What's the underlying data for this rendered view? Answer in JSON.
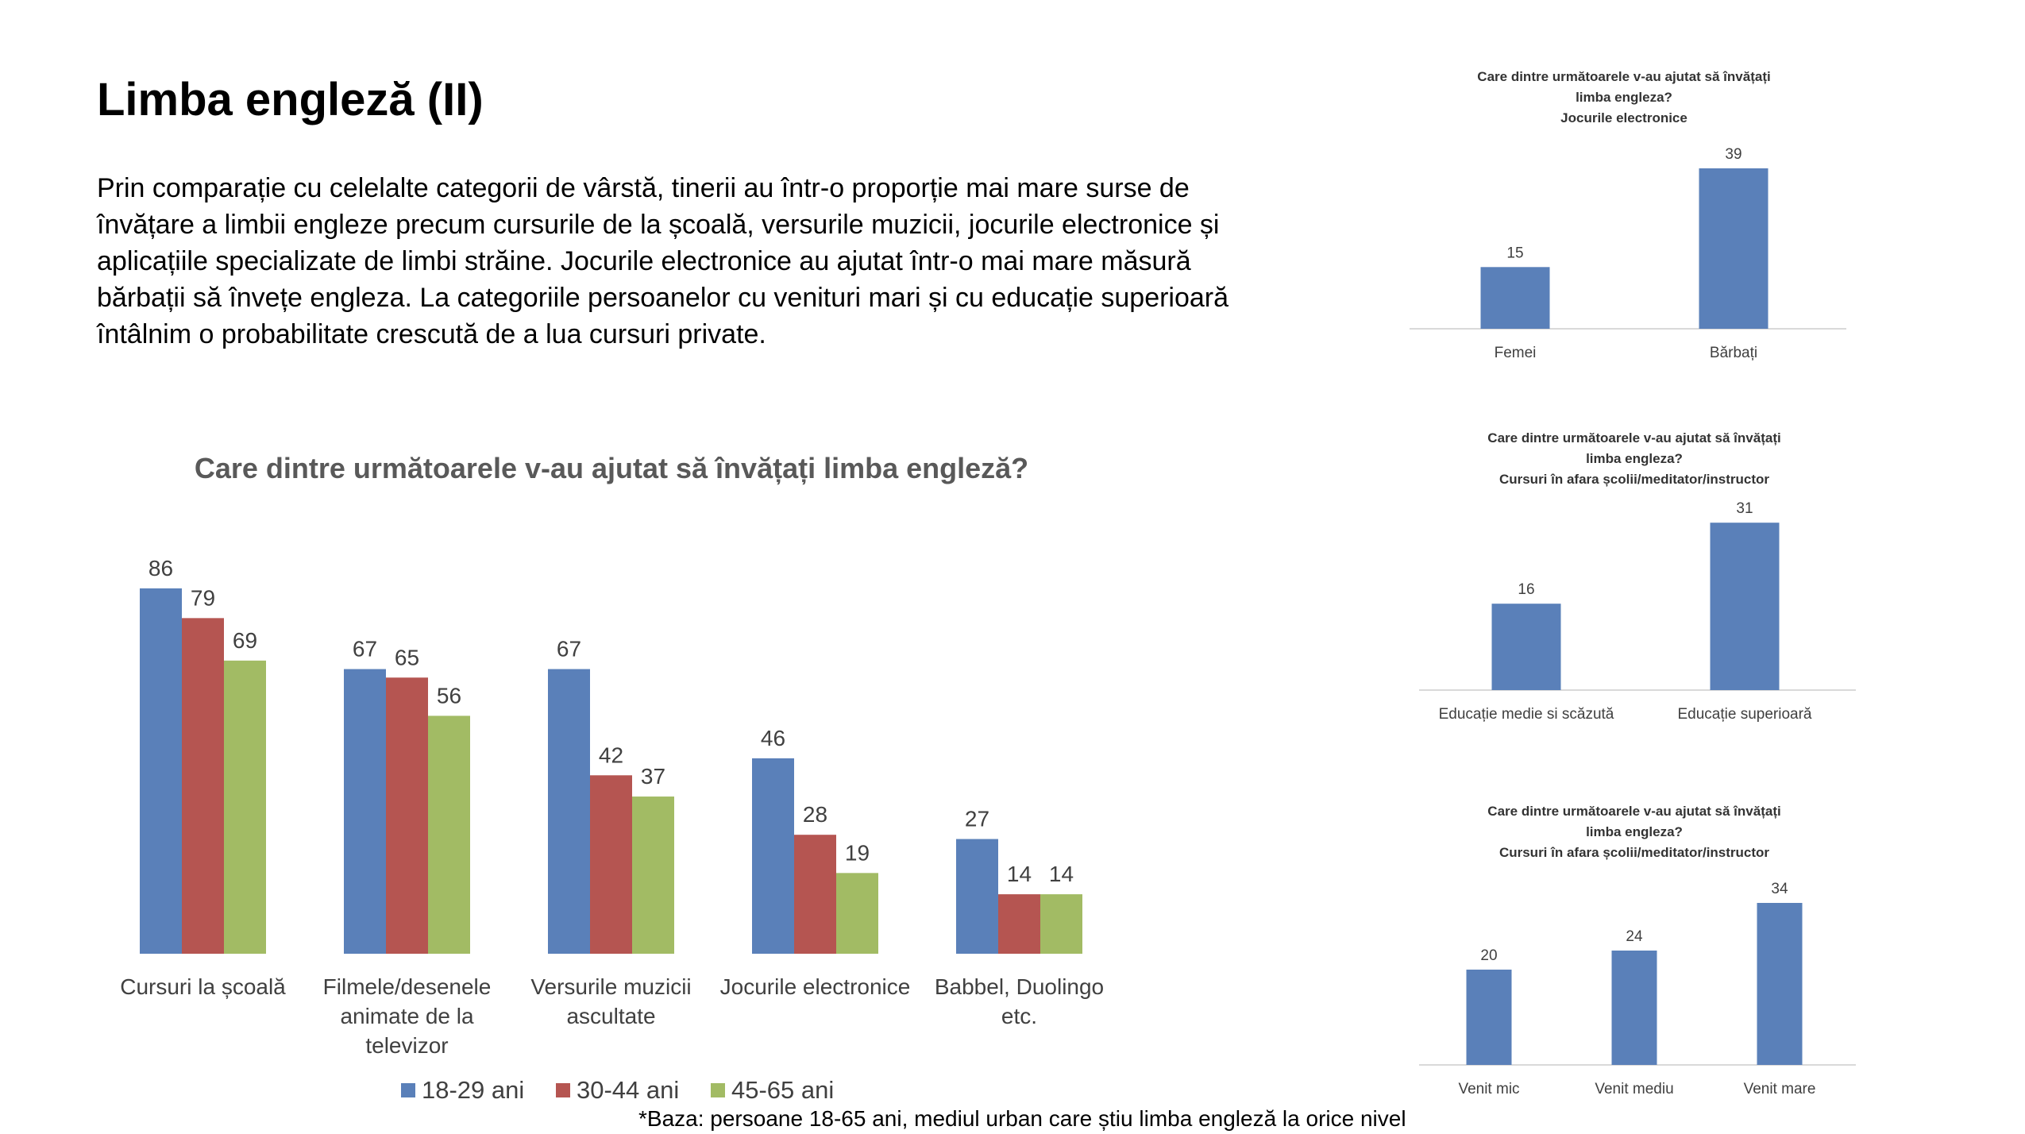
{
  "page": {
    "title": "Limba engleză (II)",
    "intro": "Prin comparație cu celelalte categorii de vârstă, tinerii au într-o proporție mai mare  surse de învățare a limbii engleze precum cursurile de la școală, versurile muzicii, jocurile electronice și aplicațiile specializate de limbi străine. Jocurile electronice au ajutat într-o mai mare măsură bărbații să învețe engleza. La categoriile persoanelor cu venituri mari și cu educație superioară întâlnim o probabilitate crescută  de a lua cursuri private.",
    "footnote": "*Baza: persoane 18-65 ani, mediul urban care știu limba engleză la orice nivel"
  },
  "colors": {
    "blue": "#5A80B9",
    "red": "#B55551",
    "green": "#A2BB64",
    "axis": "#D9D9D9"
  },
  "chart_data": [
    {
      "type": "bar",
      "title": "Care dintre următoarele v-au ajutat să învățați limba engleză?",
      "categories": [
        "Cursuri la școală",
        "Filmele/desenele animate de la televizor",
        "Versurile muzicii ascultate",
        "Jocurile electronice",
        "Babbel, Duolingo etc."
      ],
      "series": [
        {
          "name": "18-29 ani",
          "color": "#5A80B9",
          "values": [
            86,
            67,
            67,
            46,
            27
          ]
        },
        {
          "name": "30-44 ani",
          "color": "#B55551",
          "values": [
            79,
            65,
            42,
            28,
            14
          ]
        },
        {
          "name": "45-65 ani",
          "color": "#A2BB64",
          "values": [
            69,
            56,
            37,
            19,
            14
          ]
        }
      ],
      "legend": "bottom",
      "grid": false
    },
    {
      "type": "bar",
      "title_lines": [
        "Care dintre următoarele v-au ajutat să învățați",
        "limba engleza?",
        "Jocurile electronice"
      ],
      "categories": [
        "Femei",
        "Bărbați"
      ],
      "values": [
        15,
        39
      ],
      "grid": false
    },
    {
      "type": "bar",
      "title_lines": [
        "Care dintre următoarele v-au ajutat să învățați",
        "limba engleza?",
        "Cursuri în afara școlii/meditator/instructor"
      ],
      "categories": [
        "Educație medie si scăzută",
        "Educație superioară"
      ],
      "values": [
        16,
        31
      ],
      "grid": false
    },
    {
      "type": "bar",
      "title_lines": [
        "Care dintre următoarele v-au ajutat să învățați",
        "limba engleza?",
        "Cursuri în afara școlii/meditator/instructor"
      ],
      "categories": [
        "Venit mic",
        "Venit mediu",
        "Venit mare"
      ],
      "values": [
        20,
        24,
        34
      ],
      "grid": false
    }
  ]
}
